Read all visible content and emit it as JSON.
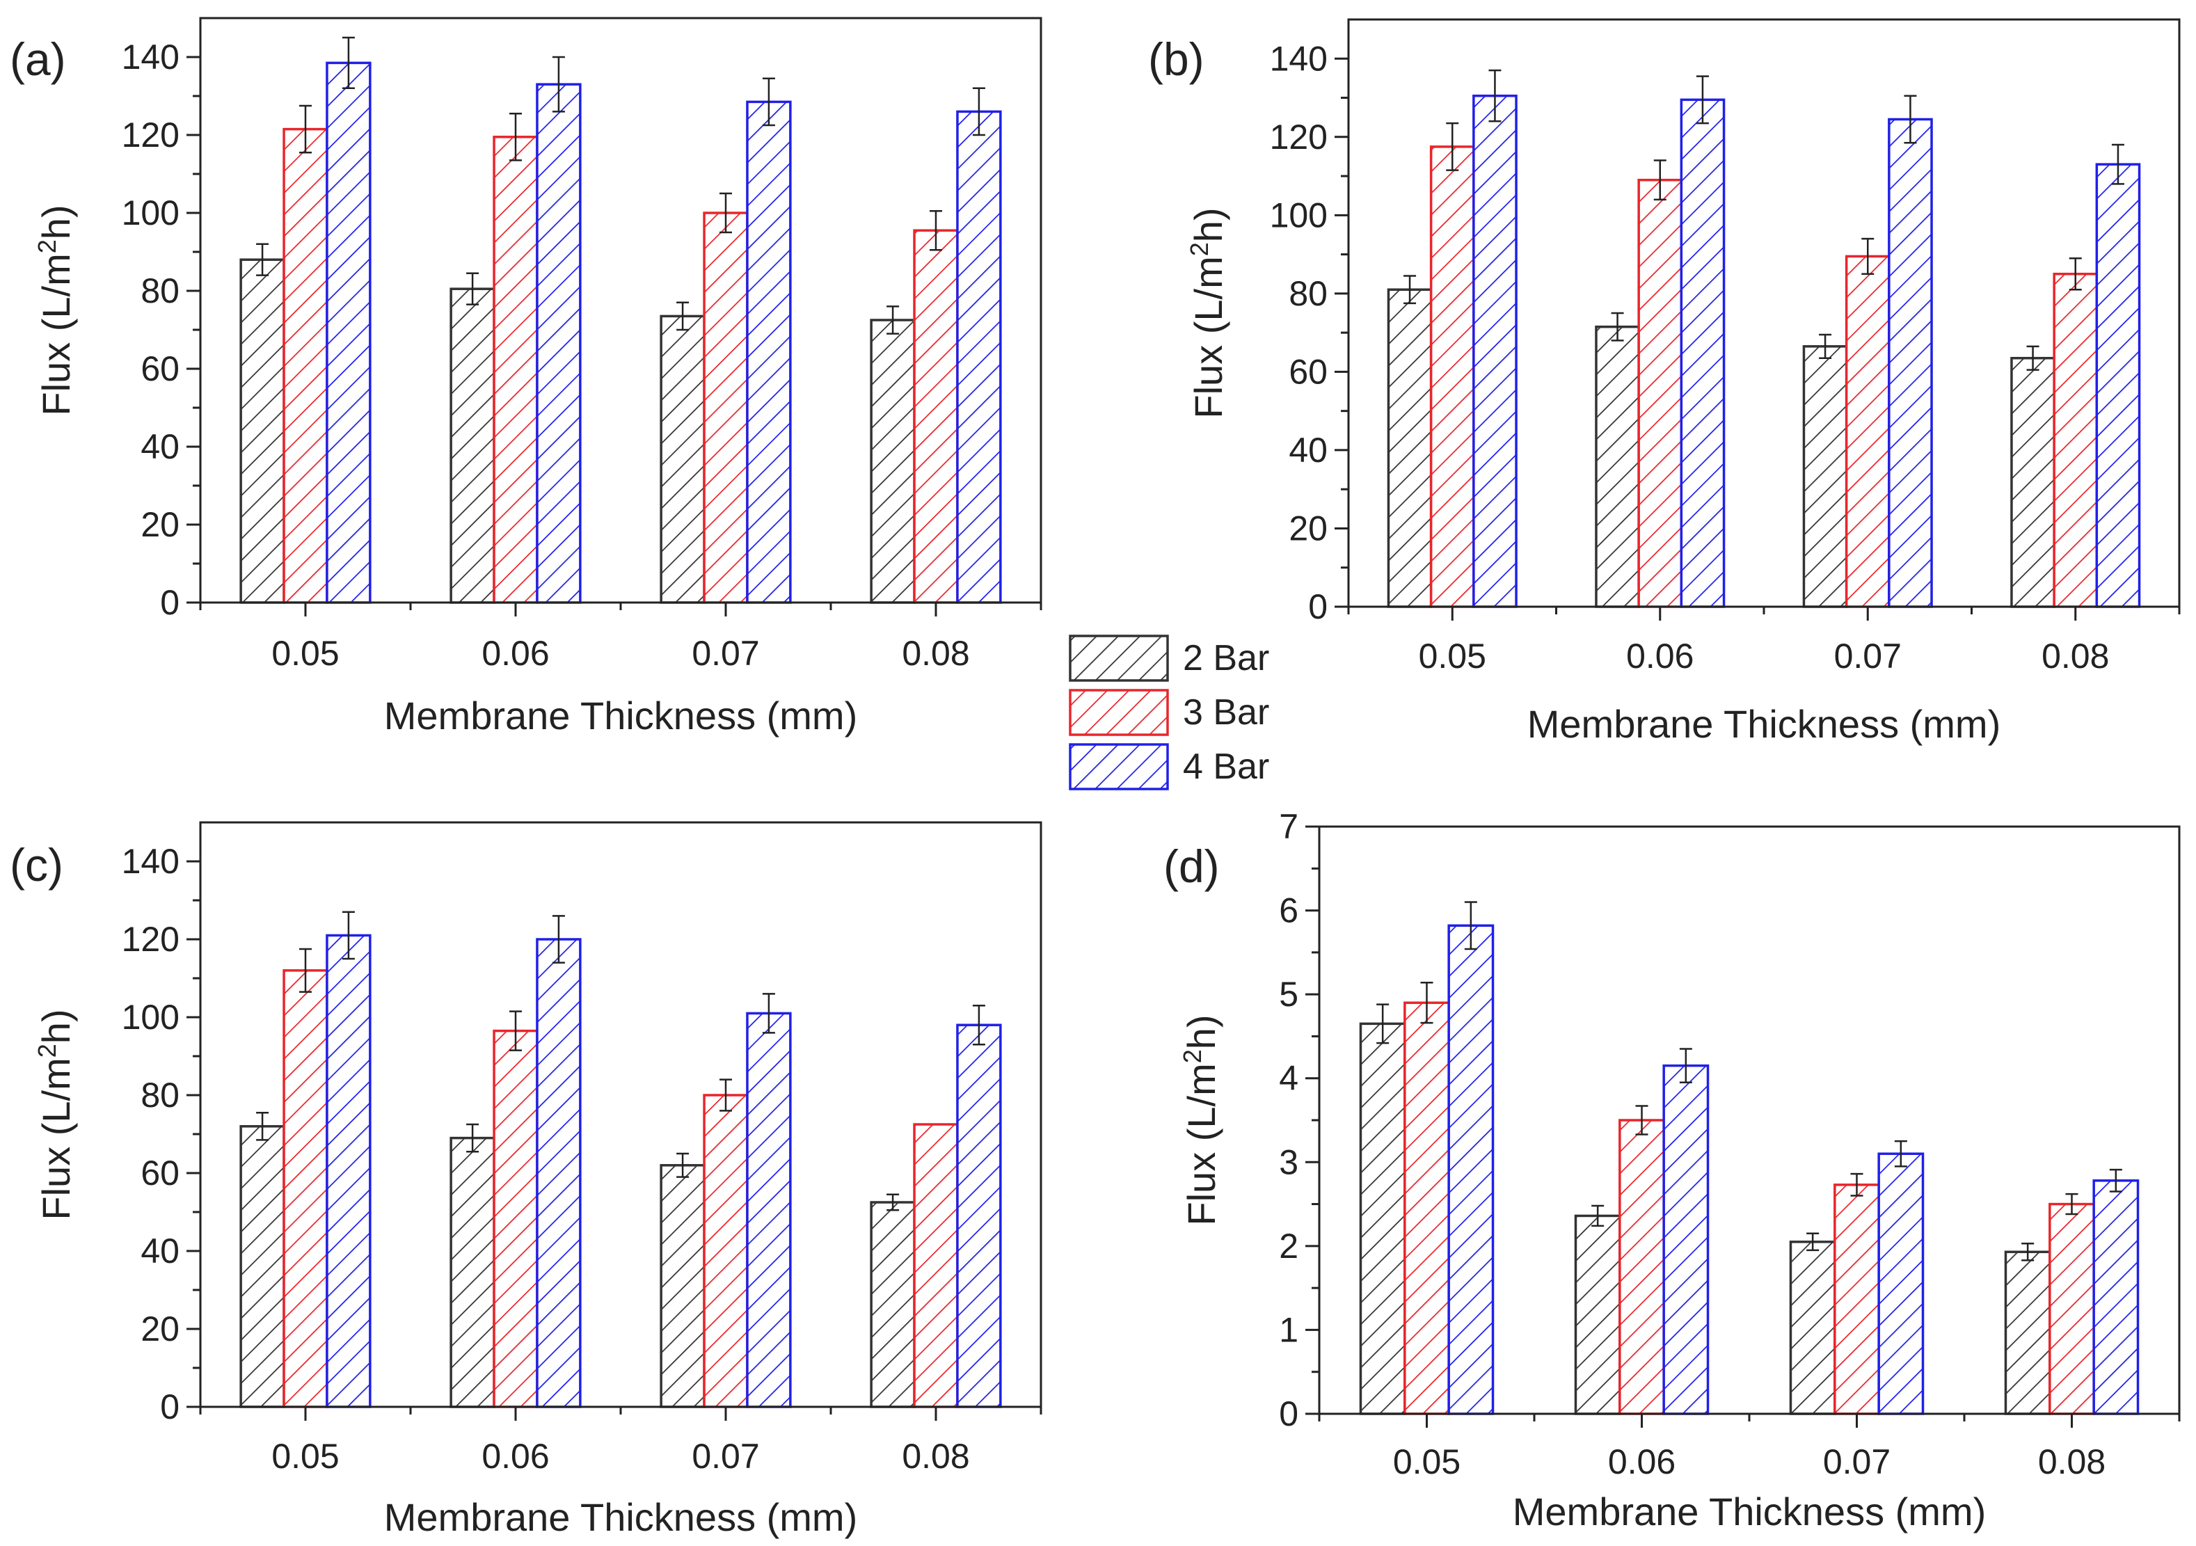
{
  "chart_data": [
    {
      "panel_label": "(a)",
      "type": "bar",
      "xlabel": "Membrane Thickness (mm)",
      "ylabel": "Flux (L/m2h)",
      "ylabel_parts": {
        "pre": "Flux (L/m",
        "sup": "2",
        "post": "h)"
      },
      "ylim": [
        0,
        150
      ],
      "yticks": [
        0,
        20,
        40,
        60,
        80,
        100,
        120,
        140
      ],
      "categories": [
        "0.05",
        "0.06",
        "0.07",
        "0.08"
      ],
      "series": [
        {
          "name": "2 Bar",
          "color": "#333333",
          "values": [
            88,
            80.5,
            73.5,
            72.5
          ],
          "errors": [
            4,
            4,
            3.5,
            3.5
          ]
        },
        {
          "name": "3 Bar",
          "color": "#e8262b",
          "values": [
            121.5,
            119.5,
            100,
            95.5
          ],
          "errors": [
            6,
            6,
            5,
            5
          ]
        },
        {
          "name": "4 Bar",
          "color": "#2020e8",
          "values": [
            138.5,
            133,
            128.5,
            126
          ],
          "errors": [
            6.5,
            7,
            6,
            6
          ]
        }
      ]
    },
    {
      "panel_label": "(b)",
      "type": "bar",
      "xlabel": "Membrane Thickness (mm)",
      "ylabel": "Flux (L/m2h)",
      "ylabel_parts": {
        "pre": "Flux (L/m",
        "sup": "2",
        "post": "h)"
      },
      "ylim": [
        0,
        150
      ],
      "yticks": [
        0,
        20,
        40,
        60,
        80,
        100,
        120,
        140
      ],
      "categories": [
        "0.05",
        "0.06",
        "0.07",
        "0.08"
      ],
      "series": [
        {
          "name": "2 Bar",
          "color": "#333333",
          "values": [
            81,
            71.5,
            66.5,
            63.5
          ],
          "errors": [
            3.5,
            3.5,
            3,
            3
          ]
        },
        {
          "name": "3 Bar",
          "color": "#e8262b",
          "values": [
            117.5,
            109,
            89.5,
            85
          ],
          "errors": [
            6,
            5,
            4.5,
            4
          ]
        },
        {
          "name": "4 Bar",
          "color": "#2020e8",
          "values": [
            130.5,
            129.5,
            124.5,
            113
          ],
          "errors": [
            6.5,
            6,
            6,
            5
          ]
        }
      ]
    },
    {
      "panel_label": "(c)",
      "type": "bar",
      "xlabel": "Membrane Thickness (mm)",
      "ylabel": "Flux (L/m2h)",
      "ylabel_parts": {
        "pre": "Flux (L/m",
        "sup": "2",
        "post": "h)"
      },
      "ylim": [
        0,
        150
      ],
      "yticks": [
        0,
        20,
        40,
        60,
        80,
        100,
        120,
        140
      ],
      "categories": [
        "0.05",
        "0.06",
        "0.07",
        "0.08"
      ],
      "series": [
        {
          "name": "2 Bar",
          "color": "#333333",
          "values": [
            72,
            69,
            62,
            52.5
          ],
          "errors": [
            3.5,
            3.5,
            3,
            2
          ]
        },
        {
          "name": "3 Bar",
          "color": "#e8262b",
          "values": [
            112,
            96.5,
            80,
            72.5
          ],
          "errors": [
            5.5,
            5,
            4,
            0
          ]
        },
        {
          "name": "4 Bar",
          "color": "#2020e8",
          "values": [
            121,
            120,
            101,
            98
          ],
          "errors": [
            6,
            6,
            5,
            5
          ]
        }
      ]
    },
    {
      "panel_label": "(d)",
      "type": "bar",
      "xlabel": "Membrane Thickness (mm)",
      "ylabel": "Flux (L/m2h)",
      "ylabel_parts": {
        "pre": "Flux (L/m",
        "sup": "2",
        "post": "h)"
      },
      "ylim": [
        0,
        7
      ],
      "yticks": [
        0,
        1,
        2,
        3,
        4,
        5,
        6,
        7
      ],
      "categories": [
        "0.05",
        "0.06",
        "0.07",
        "0.08"
      ],
      "series": [
        {
          "name": "2 Bar",
          "color": "#333333",
          "values": [
            4.65,
            2.36,
            2.05,
            1.93
          ],
          "errors": [
            0.23,
            0.12,
            0.1,
            0.1
          ]
        },
        {
          "name": "3 Bar",
          "color": "#e8262b",
          "values": [
            4.9,
            3.5,
            2.73,
            2.5
          ],
          "errors": [
            0.24,
            0.17,
            0.13,
            0.12
          ]
        },
        {
          "name": "4 Bar",
          "color": "#2020e8",
          "values": [
            5.82,
            4.15,
            3.1,
            2.78
          ],
          "errors": [
            0.28,
            0.2,
            0.15,
            0.13
          ]
        }
      ]
    }
  ],
  "legend": {
    "entries": [
      {
        "label": "2 Bar",
        "color": "#333333"
      },
      {
        "label": "3 Bar",
        "color": "#e8262b"
      },
      {
        "label": "4 Bar",
        "color": "#2020e8"
      }
    ]
  }
}
